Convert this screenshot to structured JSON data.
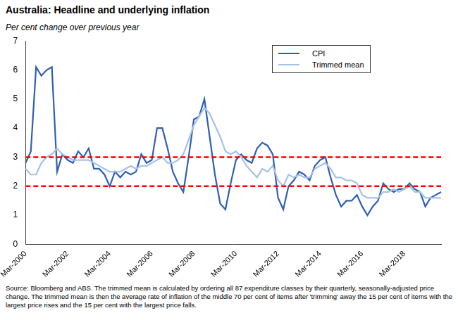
{
  "chart_data": {
    "type": "line",
    "title": "Australia: Headline and underlying inflation",
    "subtitle": "Per cent change over previous year",
    "note": "Source: Bloomberg and ABS.  The trimmed mean is calculated by ordering all 87 expenditure classes by their quarterly, seasonally-adjusted price change.  The trimmed mean is then the average rate of inflation of the middle 70 per cent of items after 'trimming' away the 15 per cent of items with the largest price rises and the 15 per cent with the largest price falls.",
    "categories": [
      "Mar-2000",
      null,
      null,
      null,
      null,
      null,
      null,
      null,
      "Mar-2002",
      null,
      null,
      null,
      null,
      null,
      null,
      null,
      "Mar-2004",
      null,
      null,
      null,
      null,
      null,
      null,
      null,
      "Mar-2006",
      null,
      null,
      null,
      null,
      null,
      null,
      null,
      "Mar-2008",
      null,
      null,
      null,
      null,
      null,
      null,
      null,
      "Mar-2010",
      null,
      null,
      null,
      null,
      null,
      null,
      null,
      "Mar-2012",
      null,
      null,
      null,
      null,
      null,
      null,
      null,
      "Mar-2014",
      null,
      null,
      null,
      null,
      null,
      null,
      null,
      "Mar-2016",
      null,
      null,
      null,
      null,
      null,
      null,
      null,
      "Mar-2018",
      null,
      null,
      null,
      null,
      null,
      null,
      null
    ],
    "series": [
      {
        "name": "CPI",
        "color": "#2f5fb3",
        "values": [
          2.8,
          3.2,
          6.1,
          5.8,
          6.0,
          6.1,
          2.5,
          3.1,
          2.9,
          2.8,
          3.2,
          3.0,
          3.3,
          2.6,
          2.6,
          2.4,
          2.0,
          2.5,
          2.3,
          2.5,
          2.4,
          2.5,
          3.1,
          2.8,
          2.9,
          4.0,
          4.0,
          3.3,
          2.5,
          2.1,
          1.8,
          3.0,
          4.3,
          4.4,
          5.0,
          3.7,
          2.4,
          1.4,
          1.2,
          2.1,
          2.9,
          3.1,
          2.9,
          2.8,
          3.3,
          3.5,
          3.4,
          3.1,
          1.6,
          1.2,
          2.0,
          2.2,
          2.5,
          2.4,
          2.2,
          2.7,
          2.9,
          3.0,
          2.3,
          1.7,
          1.3,
          1.5,
          1.5,
          1.7,
          1.3,
          1.0,
          1.3,
          1.5,
          2.1,
          1.9,
          1.8,
          1.9,
          1.9,
          2.1,
          1.9,
          1.8,
          1.3,
          1.6,
          1.7,
          1.8
        ]
      },
      {
        "name": "Trimmed mean",
        "color": "#a6c2e8",
        "values": [
          2.6,
          2.4,
          2.4,
          2.8,
          3.0,
          3.1,
          3.3,
          3.1,
          3.0,
          2.9,
          2.9,
          2.9,
          2.9,
          2.8,
          2.7,
          2.6,
          2.5,
          2.5,
          2.5,
          2.6,
          2.7,
          2.6,
          2.7,
          2.7,
          2.8,
          2.9,
          3.0,
          2.8,
          2.8,
          2.9,
          3.1,
          3.6,
          4.1,
          4.4,
          4.7,
          4.5,
          4.1,
          3.7,
          3.2,
          3.1,
          3.2,
          3.0,
          2.7,
          2.5,
          2.3,
          2.6,
          2.5,
          2.7,
          2.2,
          2.0,
          2.4,
          2.3,
          2.4,
          2.3,
          2.3,
          2.6,
          2.7,
          2.8,
          2.6,
          2.3,
          2.3,
          2.2,
          2.2,
          2.1,
          1.7,
          1.6,
          1.6,
          1.6,
          1.8,
          1.8,
          1.9,
          1.8,
          1.9,
          2.0,
          1.8,
          1.8,
          1.6,
          1.6,
          1.6,
          1.6
        ]
      }
    ],
    "hlines": [
      {
        "value": 2,
        "color": "#ff0000",
        "line_style": "dashed"
      },
      {
        "value": 3,
        "color": "#ff0000",
        "line_style": "dashed"
      }
    ],
    "ylim": [
      0,
      7
    ],
    "yticks": [
      0,
      1,
      2,
      3,
      4,
      5,
      6,
      7
    ],
    "grid": false,
    "legend": "upper right"
  }
}
